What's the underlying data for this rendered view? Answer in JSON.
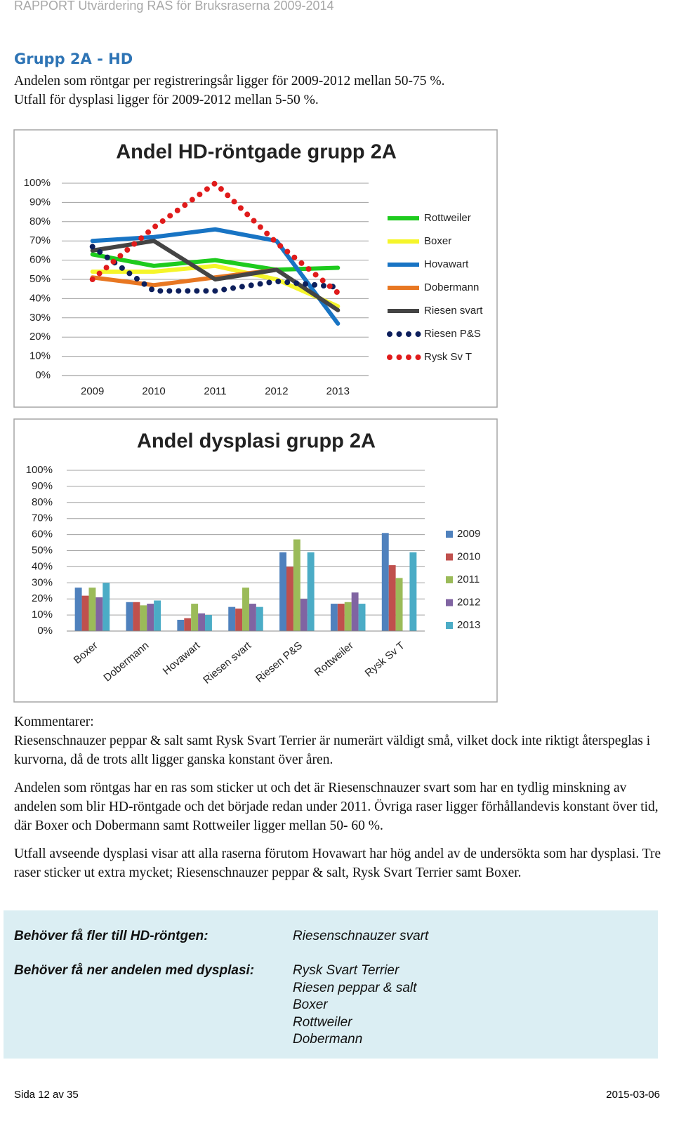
{
  "header": {
    "title": "RAPPORT Utvärdering RAS för Bruksraserna 2009-2014"
  },
  "section": {
    "heading": "Grupp 2A - HD",
    "intro": [
      "Andelen som röntgar per registreringsår ligger för 2009-2012 mellan 50-75 %.",
      "Utfall för dysplasi ligger för 2009-2012 mellan 5-50 %."
    ]
  },
  "chart_data": [
    {
      "type": "line",
      "title": "Andel HD-röntgade grupp 2A",
      "categories": [
        "2009",
        "2010",
        "2011",
        "2012",
        "2013"
      ],
      "ylim": [
        0,
        100
      ],
      "yticks": [
        {
          "value": 0,
          "label": "0%"
        },
        {
          "value": 10,
          "label": "10%"
        },
        {
          "value": 20,
          "label": "20%"
        },
        {
          "value": 30,
          "label": "30%"
        },
        {
          "value": 40,
          "label": "40%"
        },
        {
          "value": 50,
          "label": "50%"
        },
        {
          "value": 60,
          "label": "60%"
        },
        {
          "value": 70,
          "label": "70%"
        },
        {
          "value": 80,
          "label": "80%"
        },
        {
          "value": 90,
          "label": "90%"
        },
        {
          "value": 100,
          "label": "100%"
        }
      ],
      "grid": true,
      "legend": "right",
      "series": [
        {
          "name": "Rottweiler",
          "color": "#1ecb1e",
          "line_style": "solid",
          "values": [
            63,
            57,
            60,
            55,
            56
          ]
        },
        {
          "name": "Boxer",
          "color": "#f5f52a",
          "line_style": "solid",
          "values": [
            54,
            54,
            57,
            50,
            36
          ]
        },
        {
          "name": "Hovawart",
          "color": "#1874c4",
          "line_style": "solid",
          "values": [
            70,
            72,
            76,
            70,
            27
          ]
        },
        {
          "name": "Dobermann",
          "color": "#e87722",
          "line_style": "solid",
          "values": [
            51,
            47,
            51,
            55,
            null
          ]
        },
        {
          "name": "Riesen svart",
          "color": "#444444",
          "line_style": "solid",
          "values": [
            65,
            70,
            50,
            55,
            34
          ]
        },
        {
          "name": "Riesen P&S",
          "color": "#0d1f5c",
          "line_style": "dotted",
          "values": [
            67,
            44,
            44,
            49,
            46
          ]
        },
        {
          "name": "Rysk Sv T",
          "color": "#e01b1b",
          "line_style": "dotted",
          "values": [
            50,
            77,
            100,
            69,
            43
          ]
        }
      ]
    },
    {
      "type": "bar",
      "title": "Andel dysplasi grupp 2A",
      "categories": [
        "Boxer",
        "Dobermann",
        "Hovawart",
        "Riesen svart",
        "Riesen P&S",
        "Rottweiler",
        "Rysk Sv T"
      ],
      "ylim": [
        0,
        100
      ],
      "yticks": [
        {
          "value": 0,
          "label": "0%"
        },
        {
          "value": 10,
          "label": "10%"
        },
        {
          "value": 20,
          "label": "20%"
        },
        {
          "value": 30,
          "label": "30%"
        },
        {
          "value": 40,
          "label": "40%"
        },
        {
          "value": 50,
          "label": "50%"
        },
        {
          "value": 60,
          "label": "60%"
        },
        {
          "value": 70,
          "label": "70%"
        },
        {
          "value": 80,
          "label": "80%"
        },
        {
          "value": 90,
          "label": "90%"
        },
        {
          "value": 100,
          "label": "100%"
        }
      ],
      "grid": true,
      "legend": "right",
      "series": [
        {
          "name": "2009",
          "color": "#4f81bd",
          "values": [
            27,
            18,
            7,
            15,
            49,
            17,
            61
          ]
        },
        {
          "name": "2010",
          "color": "#c0504d",
          "values": [
            22,
            18,
            8,
            14,
            40,
            17,
            41
          ]
        },
        {
          "name": "2011",
          "color": "#9bbb59",
          "values": [
            27,
            16,
            17,
            27,
            57,
            18,
            33
          ]
        },
        {
          "name": "2012",
          "color": "#8064a2",
          "values": [
            21,
            17,
            11,
            17,
            20,
            24,
            null
          ]
        },
        {
          "name": "2013",
          "color": "#4bacc6",
          "values": [
            30,
            19,
            10,
            15,
            49,
            17,
            49
          ]
        }
      ]
    }
  ],
  "comments": {
    "label": "Kommentarer:",
    "paragraphs": [
      "Riesenschnauzer peppar & salt samt Rysk Svart Terrier är numerärt väldigt små, vilket dock inte riktigt återspeglas i kurvorna, då de trots allt ligger ganska konstant över åren.",
      "Andelen som röntgas har en ras som sticker ut och det är Riesenschnauzer svart som har en tydlig minskning av andelen som blir HD-röntgade och det började redan under 2011. Övriga raser ligger förhållandevis konstant över tid, där Boxer och Dobermann samt Rottweiler ligger mellan 50- 60 %.",
      "Utfall avseende dysplasi visar att alla raserna förutom Hovawart har hög andel av de undersökta som har dysplasi. Tre raser sticker ut extra mycket; Riesenschnauzer peppar & salt, Rysk Svart Terrier samt Boxer."
    ]
  },
  "summary": {
    "rows": [
      {
        "label": "Behöver få fler till HD-röntgen:",
        "items": [
          "Riesenschnauzer svart"
        ]
      },
      {
        "label": "Behöver få ner andelen med dysplasi:",
        "items": [
          "Rysk Svart Terrier",
          "Riesen peppar & salt",
          "Boxer",
          "Rottweiler",
          "Dobermann"
        ]
      }
    ]
  },
  "footer": {
    "page": "Sida 12 av 35",
    "date": "2015-03-06"
  }
}
